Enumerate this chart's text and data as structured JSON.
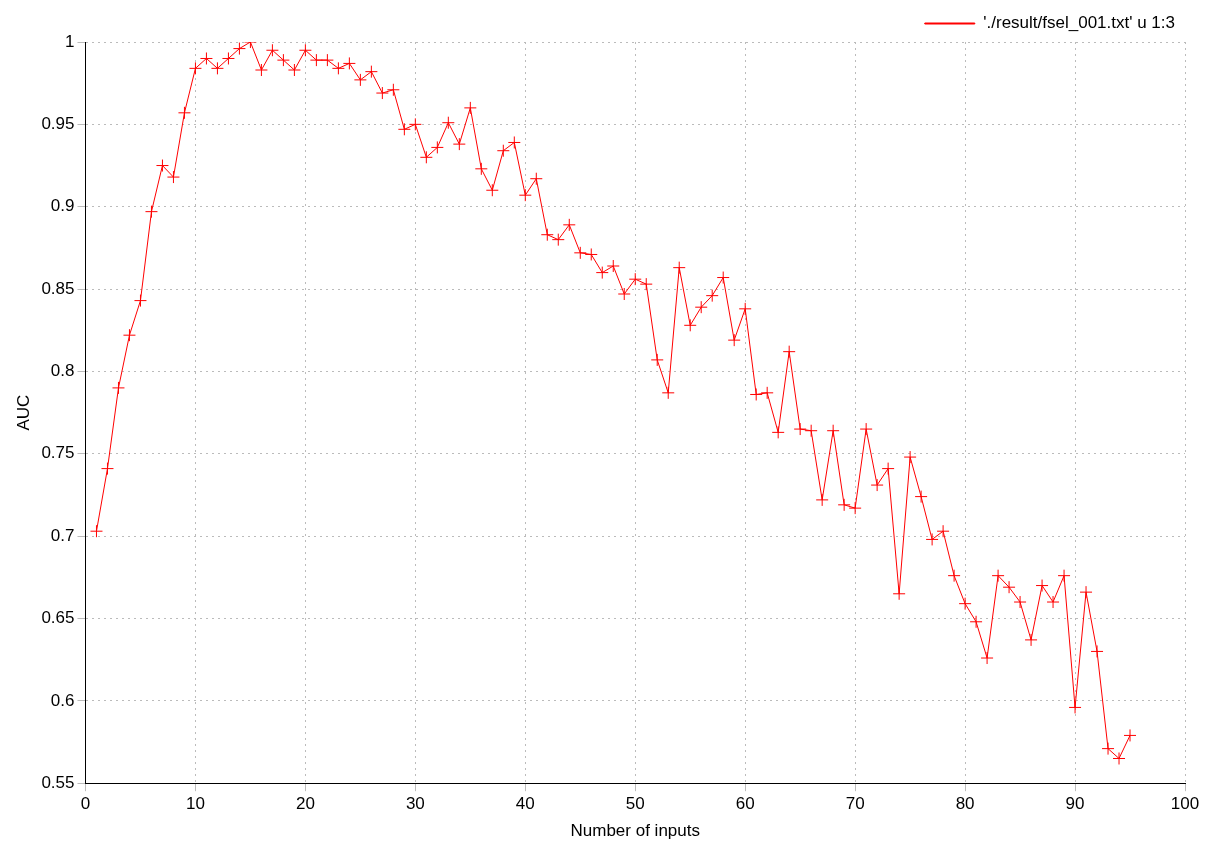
{
  "chart_data": {
    "type": "line",
    "xlabel": "Number of inputs",
    "ylabel": "AUC",
    "x": [
      1,
      2,
      3,
      4,
      5,
      6,
      7,
      8,
      9,
      10,
      11,
      12,
      13,
      14,
      15,
      16,
      17,
      18,
      19,
      20,
      21,
      22,
      23,
      24,
      25,
      26,
      27,
      28,
      29,
      30,
      31,
      32,
      33,
      34,
      35,
      36,
      37,
      38,
      39,
      40,
      41,
      42,
      43,
      44,
      45,
      46,
      47,
      48,
      49,
      50,
      51,
      52,
      53,
      54,
      55,
      56,
      57,
      58,
      59,
      60,
      61,
      62,
      63,
      64,
      65,
      66,
      67,
      68,
      69,
      70,
      71,
      72,
      73,
      74,
      75,
      76,
      77,
      78,
      79,
      80,
      81,
      82,
      83,
      84,
      85,
      86,
      87,
      88,
      89,
      90,
      91,
      92,
      93,
      94,
      95
    ],
    "series": [
      {
        "name": "'./result/fsel_001.txt' u 1:3",
        "color": "#ff0000",
        "values": [
          0.703,
          0.741,
          0.79,
          0.822,
          0.843,
          0.897,
          0.925,
          0.918,
          0.957,
          0.984,
          0.99,
          0.984,
          0.99,
          0.996,
          1.0,
          0.983,
          0.995,
          0.989,
          0.983,
          0.995,
          0.989,
          0.989,
          0.984,
          0.987,
          0.977,
          0.982,
          0.969,
          0.971,
          0.947,
          0.95,
          0.93,
          0.936,
          0.951,
          0.938,
          0.96,
          0.923,
          0.91,
          0.934,
          0.939,
          0.907,
          0.917,
          0.883,
          0.88,
          0.889,
          0.872,
          0.871,
          0.86,
          0.864,
          0.847,
          0.856,
          0.853,
          0.807,
          0.787,
          0.863,
          0.828,
          0.839,
          0.846,
          0.857,
          0.819,
          0.838,
          0.786,
          0.787,
          0.763,
          0.812,
          0.765,
          0.764,
          0.722,
          0.764,
          0.719,
          0.717,
          0.765,
          0.731,
          0.741,
          0.665,
          0.748,
          0.724,
          0.698,
          0.703,
          0.676,
          0.659,
          0.648,
          0.626,
          0.676,
          0.669,
          0.66,
          0.637,
          0.67,
          0.66,
          0.676,
          0.596,
          0.666,
          0.63,
          0.571,
          0.565,
          0.579
        ]
      }
    ],
    "xlim": [
      0,
      100
    ],
    "xticks": [
      0,
      10,
      20,
      30,
      40,
      50,
      60,
      70,
      80,
      90,
      100
    ],
    "ylim": [
      0.55,
      1
    ],
    "yticks": [
      0.55,
      0.6,
      0.65,
      0.7,
      0.75,
      0.8,
      0.85,
      0.9,
      0.95,
      1
    ],
    "grid": true,
    "legend": "top right",
    "marker": "cross",
    "line_style": "solid"
  }
}
